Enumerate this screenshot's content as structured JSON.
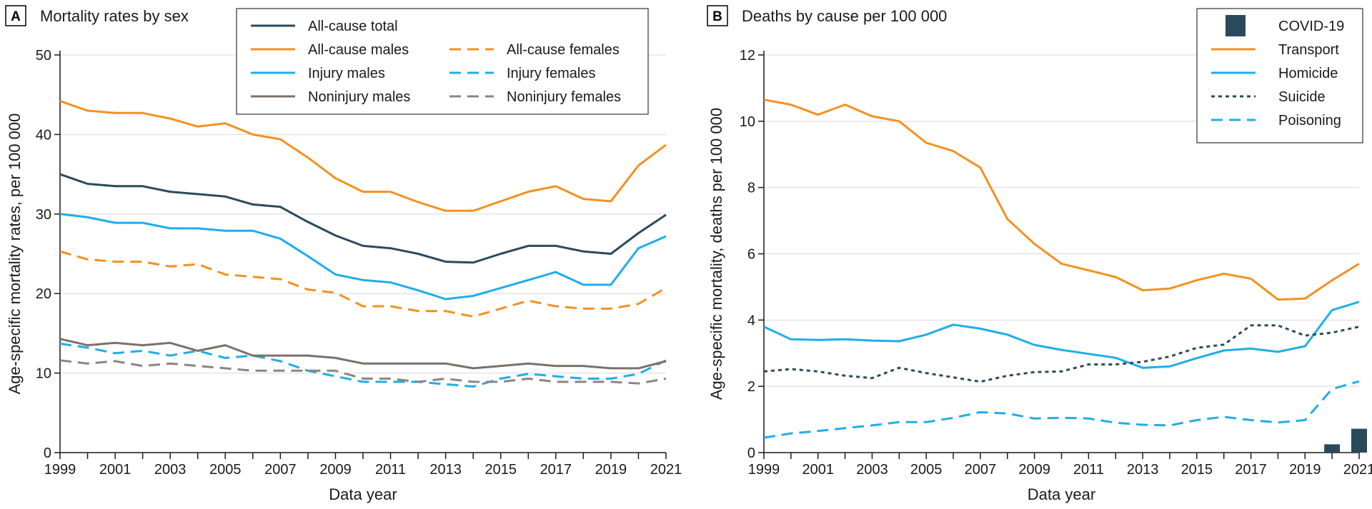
{
  "colors": {
    "navy": "#2a4a5c",
    "orange": "#f4901e",
    "blue": "#1eaee8",
    "brown": "#7d7068",
    "gray": "#8c8580",
    "text": "#1a1a1a",
    "grid": "#d9d9d9"
  },
  "chart_data": [
    {
      "panel": "A",
      "type": "line",
      "title": "Mortality rates by sex",
      "xlabel": "Data year",
      "ylabel": "Age-specific mortality rates, per 100 000",
      "xlim": [
        1999,
        2021
      ],
      "ylim": [
        0,
        50
      ],
      "xticks": [
        "1999",
        "2001",
        "2003",
        "2005",
        "2007",
        "2009",
        "2011",
        "2013",
        "2015",
        "2017",
        "2019",
        "2021"
      ],
      "yticks": [
        "0",
        "10",
        "20",
        "30",
        "40",
        "50"
      ],
      "grid": "horizontal",
      "legend_position": "top",
      "x": [
        1999,
        2000,
        2001,
        2002,
        2003,
        2004,
        2005,
        2006,
        2007,
        2008,
        2009,
        2010,
        2011,
        2012,
        2013,
        2014,
        2015,
        2016,
        2017,
        2018,
        2019,
        2020,
        2021
      ],
      "series": [
        {
          "name": "All-cause total",
          "color": "navy",
          "dash": "solid",
          "values": [
            35.0,
            33.8,
            33.5,
            33.5,
            32.8,
            32.5,
            32.2,
            31.2,
            30.9,
            29.0,
            27.3,
            26.0,
            25.7,
            25.0,
            24.0,
            23.9,
            25.0,
            26.0,
            26.0,
            25.3,
            25.0,
            27.6,
            29.9
          ]
        },
        {
          "name": "All-cause males",
          "color": "orange",
          "dash": "solid",
          "values": [
            44.2,
            43.0,
            42.7,
            42.7,
            42.0,
            41.0,
            41.4,
            40.0,
            39.4,
            37.1,
            34.5,
            32.8,
            32.8,
            31.5,
            30.4,
            30.4,
            31.6,
            32.8,
            33.5,
            31.9,
            31.6,
            36.1,
            38.7
          ]
        },
        {
          "name": "All-cause females",
          "color": "orange",
          "dash": "dashed",
          "values": [
            25.3,
            24.3,
            24.0,
            24.0,
            23.4,
            23.7,
            22.4,
            22.1,
            21.8,
            20.5,
            20.1,
            18.4,
            18.4,
            17.8,
            17.8,
            17.1,
            18.1,
            19.1,
            18.4,
            18.1,
            18.1,
            18.7,
            20.7
          ]
        },
        {
          "name": "Injury males",
          "color": "blue",
          "dash": "solid",
          "values": [
            30.0,
            29.6,
            28.9,
            28.9,
            28.2,
            28.2,
            27.9,
            27.9,
            26.9,
            24.7,
            22.4,
            21.7,
            21.4,
            20.4,
            19.3,
            19.7,
            20.7,
            21.7,
            22.7,
            21.1,
            21.1,
            25.7,
            27.2
          ]
        },
        {
          "name": "Injury females",
          "color": "blue",
          "dash": "dashed",
          "values": [
            13.7,
            13.2,
            12.5,
            12.8,
            12.2,
            12.8,
            11.9,
            12.2,
            11.5,
            10.3,
            9.6,
            8.9,
            8.9,
            8.9,
            8.6,
            8.3,
            9.3,
            9.9,
            9.6,
            9.3,
            9.3,
            9.9,
            11.6
          ]
        },
        {
          "name": "Noninjury males",
          "color": "brown",
          "dash": "solid",
          "values": [
            14.3,
            13.5,
            13.8,
            13.5,
            13.8,
            12.8,
            13.5,
            12.2,
            12.2,
            12.2,
            11.9,
            11.2,
            11.2,
            11.2,
            11.2,
            10.6,
            10.9,
            11.2,
            10.9,
            10.9,
            10.6,
            10.6,
            11.5
          ]
        },
        {
          "name": "Noninjury females",
          "color": "gray",
          "dash": "dashed",
          "values": [
            11.6,
            11.2,
            11.5,
            10.9,
            11.2,
            10.9,
            10.6,
            10.3,
            10.3,
            10.3,
            10.3,
            9.3,
            9.3,
            8.9,
            9.3,
            8.9,
            8.9,
            9.3,
            8.9,
            8.9,
            8.9,
            8.7,
            9.3
          ]
        }
      ]
    },
    {
      "panel": "B",
      "type": "line",
      "title": "Deaths by cause per 100 000",
      "xlabel": "Data year",
      "ylabel": "Age-specific mortality, deaths per 100 000",
      "xlim": [
        1999,
        2021
      ],
      "ylim": [
        0,
        12
      ],
      "xticks": [
        "1999",
        "2001",
        "2003",
        "2005",
        "2007",
        "2009",
        "2011",
        "2013",
        "2015",
        "2017",
        "2019",
        "2021"
      ],
      "yticks": [
        "0",
        "2",
        "4",
        "6",
        "8",
        "10",
        "12"
      ],
      "grid": "horizontal",
      "legend_position": "top-right",
      "x": [
        1999,
        2000,
        2001,
        2002,
        2003,
        2004,
        2005,
        2006,
        2007,
        2008,
        2009,
        2010,
        2011,
        2012,
        2013,
        2014,
        2015,
        2016,
        2017,
        2018,
        2019,
        2020,
        2021
      ],
      "bars": {
        "name": "COVID-19",
        "color": "navy",
        "x": [
          2020,
          2021
        ],
        "values": [
          0.25,
          0.72
        ]
      },
      "series": [
        {
          "name": "Transport",
          "color": "orange",
          "dash": "solid",
          "values": [
            10.65,
            10.5,
            10.2,
            10.5,
            10.15,
            10.0,
            9.35,
            9.1,
            8.6,
            7.05,
            6.3,
            5.7,
            5.5,
            5.3,
            4.9,
            4.95,
            5.2,
            5.4,
            5.25,
            4.62,
            4.65,
            5.2,
            5.7
          ]
        },
        {
          "name": "Homicide",
          "color": "blue",
          "dash": "solid",
          "values": [
            3.8,
            3.42,
            3.4,
            3.42,
            3.38,
            3.36,
            3.56,
            3.86,
            3.74,
            3.56,
            3.25,
            3.1,
            2.98,
            2.86,
            2.56,
            2.6,
            2.85,
            3.08,
            3.14,
            3.04,
            3.21,
            4.3,
            4.55
          ]
        },
        {
          "name": "Suicide",
          "color": "navy",
          "dash": "dotted",
          "values": [
            2.45,
            2.52,
            2.45,
            2.32,
            2.25,
            2.56,
            2.4,
            2.27,
            2.14,
            2.32,
            2.43,
            2.45,
            2.66,
            2.66,
            2.74,
            2.9,
            3.16,
            3.26,
            3.84,
            3.84,
            3.53,
            3.62,
            3.8
          ]
        },
        {
          "name": "Poisoning",
          "color": "blue",
          "dash": "dashed",
          "values": [
            0.45,
            0.58,
            0.65,
            0.74,
            0.82,
            0.92,
            0.92,
            1.05,
            1.22,
            1.18,
            1.03,
            1.05,
            1.03,
            0.9,
            0.84,
            0.82,
            0.98,
            1.08,
            0.98,
            0.91,
            0.98,
            1.92,
            2.15
          ]
        }
      ]
    }
  ]
}
